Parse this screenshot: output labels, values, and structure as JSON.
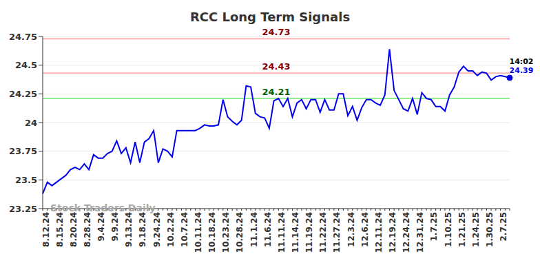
{
  "chart_data": {
    "type": "line",
    "title": "RCC Long Term Signals",
    "watermark": "Stock Traders Daily",
    "color": "#0000ee",
    "grid": true,
    "categories": [
      "8.12.24",
      null,
      null,
      "8.15.24",
      null,
      null,
      "8.20.24",
      null,
      null,
      "8.28.24",
      null,
      null,
      "9.4.24",
      null,
      null,
      "9.9.24",
      null,
      null,
      "9.13.24",
      null,
      null,
      "9.18.24",
      null,
      null,
      "9.24.24",
      null,
      null,
      "10.2.24",
      null,
      null,
      "10.7.24",
      null,
      null,
      "10.11.24",
      null,
      null,
      "10.18.24",
      null,
      null,
      "10.23.24",
      null,
      null,
      "10.28.24",
      null,
      null,
      "11.1.24",
      null,
      null,
      "11.6.24",
      null,
      null,
      "11.11.24",
      null,
      null,
      "11.14.24",
      null,
      null,
      "11.19.24",
      null,
      null,
      "11.22.24",
      null,
      null,
      "11.27.24",
      null,
      null,
      "12.3.24",
      null,
      null,
      "12.6.24",
      null,
      null,
      "12.11.24",
      null,
      null,
      "12.19.24",
      null,
      null,
      "12.24.24",
      null,
      null,
      "12.31.24",
      null,
      null,
      "1.7.25",
      null,
      null,
      "1.10.25",
      null,
      null,
      "1.21.25",
      null,
      null,
      "1.24.25",
      null,
      null,
      "1.30.25",
      null,
      null,
      "2.7.25",
      null,
      null
    ],
    "values": [
      23.38,
      23.48,
      23.45,
      23.48,
      23.51,
      23.54,
      23.59,
      23.61,
      23.59,
      23.64,
      23.59,
      23.72,
      23.69,
      23.69,
      23.73,
      23.75,
      23.84,
      23.73,
      23.78,
      23.65,
      23.83,
      23.65,
      23.83,
      23.86,
      23.93,
      23.65,
      23.77,
      23.75,
      23.7,
      23.93,
      23.93,
      23.93,
      23.93,
      23.93,
      23.95,
      23.98,
      23.97,
      23.97,
      23.98,
      24.2,
      24.05,
      24.01,
      23.98,
      24.02,
      24.32,
      24.31,
      24.08,
      24.05,
      24.04,
      23.95,
      24.19,
      24.21,
      24.14,
      24.21,
      24.05,
      24.17,
      24.2,
      24.12,
      24.2,
      24.2,
      24.09,
      24.2,
      24.11,
      24.11,
      24.25,
      24.25,
      24.06,
      24.14,
      24.02,
      24.13,
      24.2,
      24.2,
      24.17,
      24.15,
      24.24,
      24.64,
      24.28,
      24.2,
      24.12,
      24.1,
      24.21,
      24.07,
      24.26,
      24.21,
      24.2,
      24.14,
      24.14,
      24.1,
      24.24,
      24.31,
      24.44,
      24.49,
      24.45,
      24.45,
      24.41,
      24.44,
      24.43,
      24.37,
      24.4,
      24.41,
      24.4,
      24.39
    ],
    "ylim": [
      23.25,
      24.75
    ],
    "yticks": [
      23.25,
      23.5,
      23.75,
      24,
      24.25,
      24.5,
      24.75
    ],
    "reference_lines": [
      {
        "y": 24.73,
        "label": "24.73",
        "color": "#ffb3b3"
      },
      {
        "y": 24.43,
        "label": "24.43",
        "color": "#ffb3b3"
      },
      {
        "y": 24.21,
        "label": "24.21",
        "color": "#90ee90"
      }
    ],
    "last_point": {
      "time": "14:02",
      "label": "24.39",
      "value": 24.39
    }
  }
}
